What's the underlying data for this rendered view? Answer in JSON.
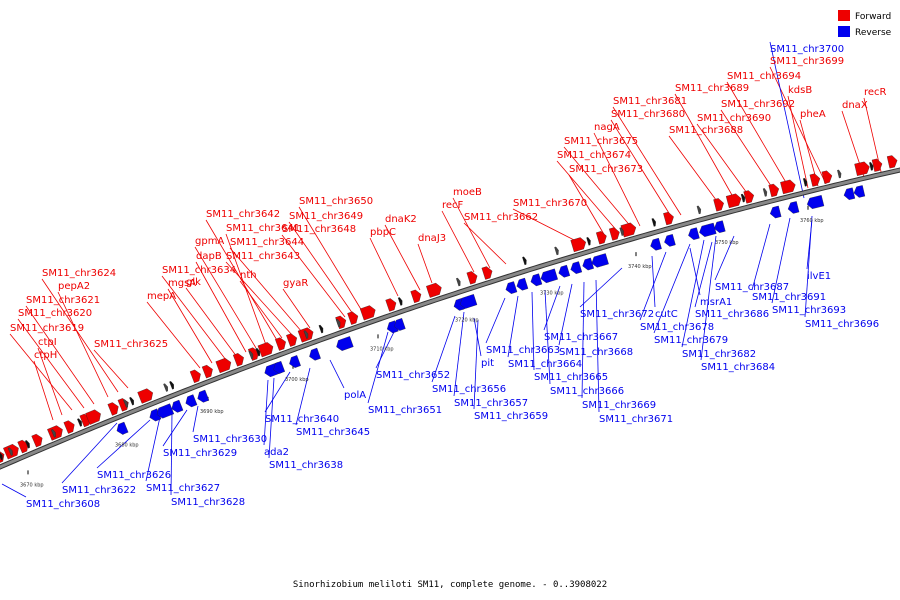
{
  "legend": {
    "forward": {
      "label": "Forward",
      "color": "#ee0000"
    },
    "reverse": {
      "label": "Reverse",
      "color": "#0000ee"
    }
  },
  "caption": "Sinorhizobium meliloti SM11, complete genome. - 0..3908022",
  "colors": {
    "backbone": "#888888",
    "backbone_edge": "#333333"
  },
  "ticks": [
    "3670 kbp",
    "3680 kbp",
    "3690 kbp",
    "3700 kbp",
    "3710 kbp",
    "3720 kbp",
    "3730 kbp",
    "3740 kbp",
    "3750 kbp",
    "3760 kbp"
  ],
  "forward_labels": [
    "ctpH",
    "ctpI",
    "SM11_chr3619",
    "SM11_chr3620",
    "SM11_chr3621",
    "pepA2",
    "SM11_chr3624",
    "SM11_chr3625",
    "mepA",
    "mgsA",
    "SM11_chr3634",
    "glk",
    "dapB",
    "gpmA",
    "SM11_chr3641",
    "SM11_chr3642",
    "nth",
    "SM11_chr3643",
    "SM11_chr3644",
    "gyaR",
    "SM11_chr3648",
    "SM11_chr3649",
    "SM11_chr3650",
    "pbpC",
    "dnaK2",
    "dnaJ3",
    "recF",
    "moeB",
    "SM11_chr3662",
    "SM11_chr3670",
    "SM11_chr3673",
    "SM11_chr3674",
    "SM11_chr3675",
    "nagA",
    "SM11_chr3680",
    "SM11_chr3681",
    "SM11_chr3688",
    "SM11_chr3689",
    "SM11_chr3690",
    "SM11_chr3692",
    "SM11_chr3694",
    "kdsB",
    "pheA",
    "SM11_chr3699",
    "dnaX",
    "recR"
  ],
  "reverse_labels": [
    "SM11_chr3608",
    "SM11_chr3622",
    "SM11_chr3626",
    "SM11_chr3627",
    "SM11_chr3628",
    "SM11_chr3629",
    "SM11_chr3630",
    "ada2",
    "SM11_chr3638",
    "SM11_chr3640",
    "SM11_chr3645",
    "polA",
    "SM11_chr3651",
    "SM11_chr3652",
    "SM11_chr3656",
    "SM11_chr3657",
    "pit",
    "SM11_chr3659",
    "SM11_chr3663",
    "SM11_chr3664",
    "SM11_chr3665",
    "SM11_chr3666",
    "SM11_chr3667",
    "SM11_chr3668",
    "SM11_chr3669",
    "SM11_chr3671",
    "SM11_chr3672",
    "cutC",
    "SM11_chr3678",
    "SM11_chr3679",
    "SM11_chr3682",
    "SM11_chr3684",
    "msrA1",
    "SM11_chr3686",
    "SM11_chr3687",
    "SM11_chr3691",
    "ilvE1",
    "SM11_chr3693",
    "SM11_chr3696",
    "SM11_chr3700"
  ]
}
